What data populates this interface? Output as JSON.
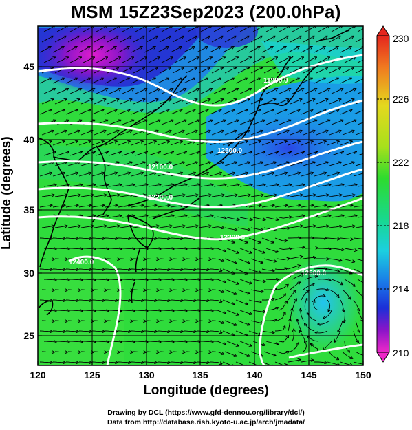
{
  "title": "MSM 15Z23Sep2023 (200.0hPa)",
  "axes": {
    "xlabel": "Longitude (degrees)",
    "ylabel": "Latitude  (degrees)",
    "xticks": [
      "120",
      "125",
      "130",
      "135",
      "140",
      "145",
      "150"
    ],
    "yticks": [
      "45",
      "40",
      "35",
      "30",
      "25"
    ],
    "xlim": [
      120,
      150
    ],
    "ylim": [
      22.5,
      47.5
    ]
  },
  "colorbar": {
    "ticks": [
      "230",
      "226",
      "222",
      "218",
      "214",
      "210"
    ],
    "range": [
      210,
      230
    ]
  },
  "contour_labels": [
    "11900.0",
    "12100.0",
    "12200.0",
    "12300.0",
    "12400.0",
    "12500.0",
    "12500.0"
  ],
  "credits": {
    "line1": "Drawing by DCL (https://www.gfd-dennou.org/library/dcl/)",
    "line2": "Data from http://database.rish.kyoto-u.ac.jp/arch/jmadata/"
  }
}
